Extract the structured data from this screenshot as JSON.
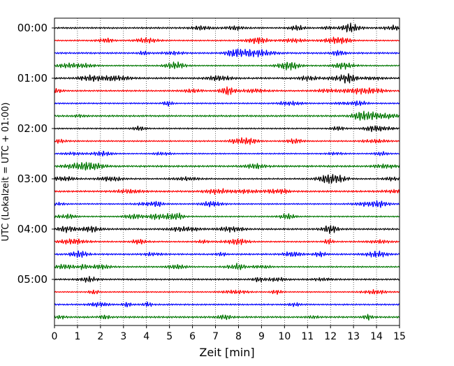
{
  "chart_data": {
    "type": "line",
    "title": "",
    "xlabel": "Zeit  [min]",
    "ylabel": "UTC (Lokalzeit = UTC + 01:00)",
    "xlim": [
      0,
      15
    ],
    "x_ticks": [
      "0",
      "1",
      "2",
      "3",
      "4",
      "5",
      "6",
      "7",
      "8",
      "9",
      "10",
      "11",
      "12",
      "13",
      "14",
      "15"
    ],
    "y_tick_labels": [
      "00:00",
      "01:00",
      "02:00",
      "03:00",
      "04:00",
      "05:00"
    ],
    "trace_interval_minutes": 15,
    "trace_count": 24,
    "trace_colors": [
      "#000000",
      "#ff0000",
      "#0000ff",
      "#007700"
    ],
    "grid": "vertical dotted lines at each minute"
  }
}
